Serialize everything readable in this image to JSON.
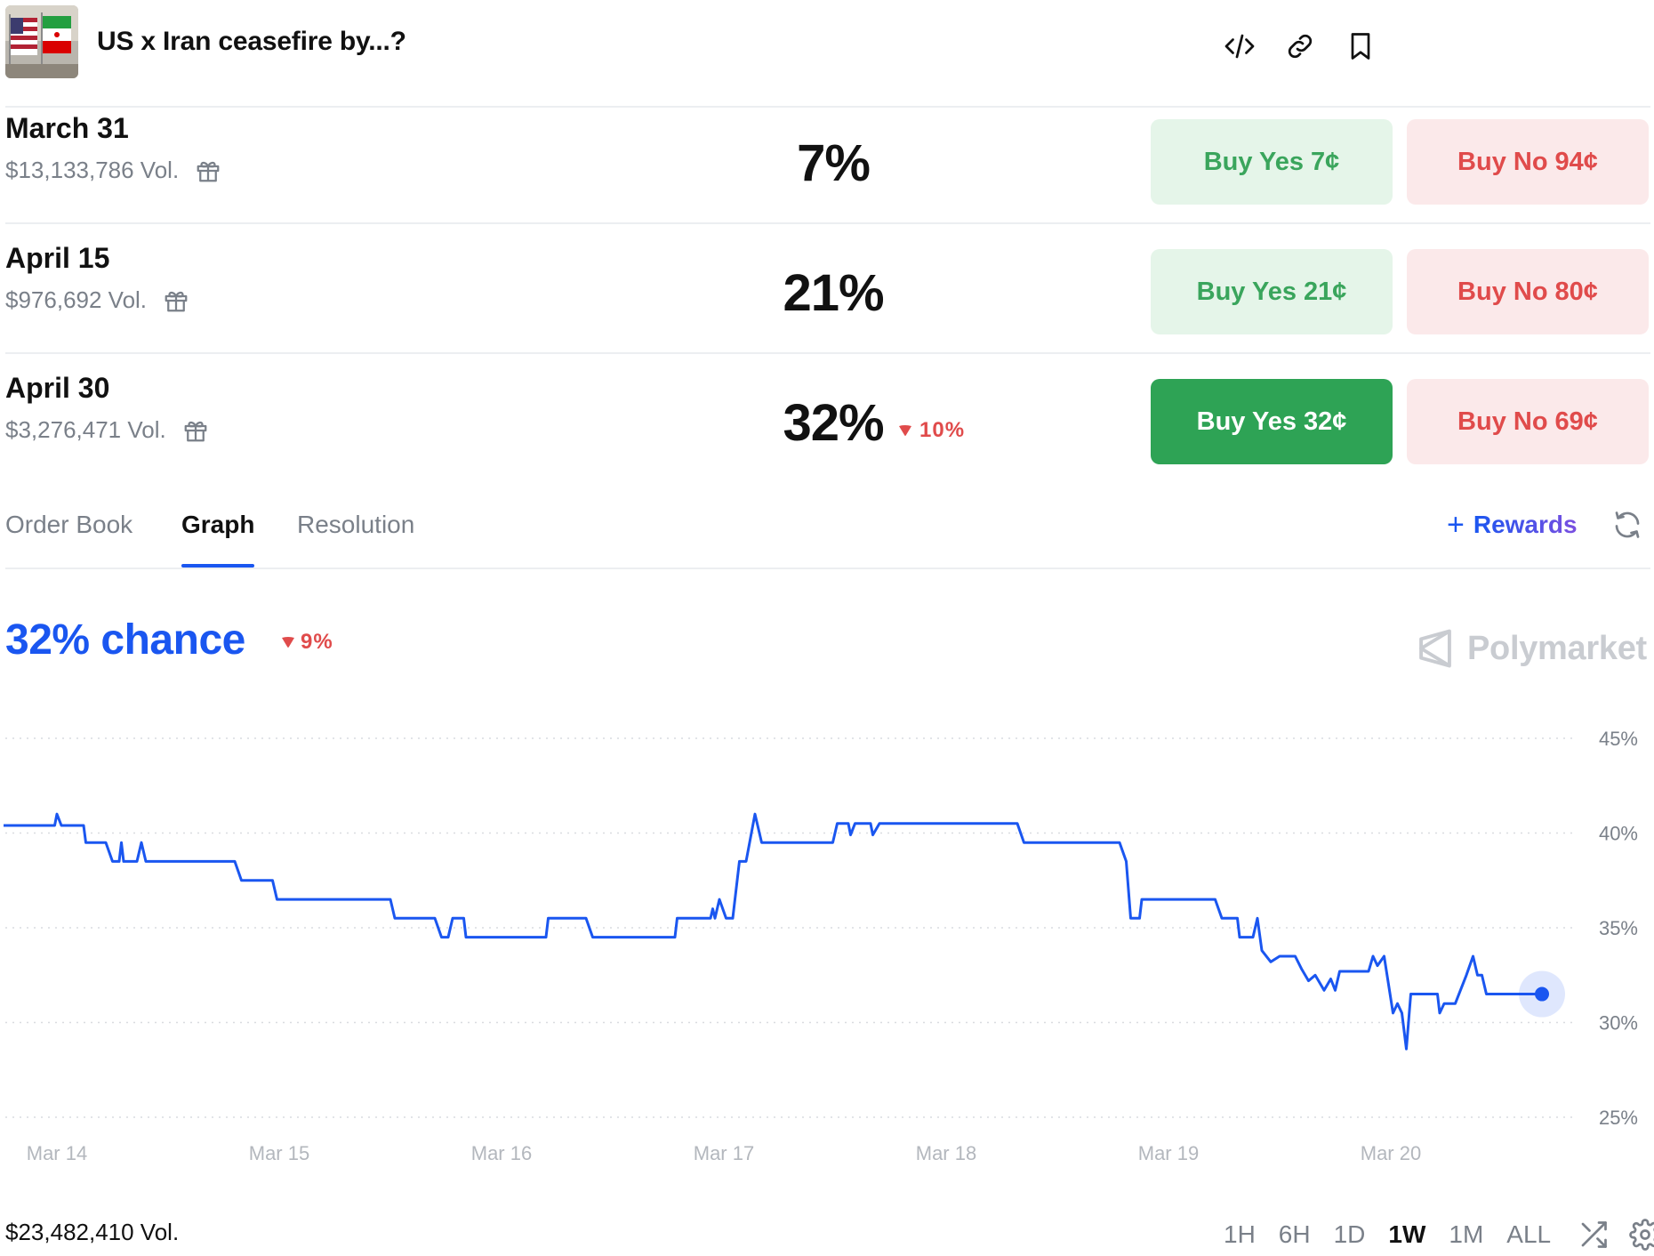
{
  "header": {
    "title": "US x Iran ceasefire by...?",
    "icons": [
      "code-embed-icon",
      "link-icon",
      "bookmark-icon"
    ]
  },
  "outcomes": [
    {
      "date": "March 31",
      "volume": "$13,133,786 Vol.",
      "percent": "7%",
      "change": "",
      "buy_yes_label": "Buy Yes",
      "buy_yes_price": "7¢",
      "buy_no_label": "Buy No",
      "buy_no_price": "94¢",
      "selected": false
    },
    {
      "date": "April 15",
      "volume": "$976,692 Vol.",
      "percent": "21%",
      "change": "",
      "buy_yes_label": "Buy Yes",
      "buy_yes_price": "21¢",
      "buy_no_label": "Buy No",
      "buy_no_price": "80¢",
      "selected": false
    },
    {
      "date": "April 30",
      "volume": "$3,276,471 Vol.",
      "percent": "32%",
      "change": "10%",
      "buy_yes_label": "Buy Yes",
      "buy_yes_price": "32¢",
      "buy_no_label": "Buy No",
      "buy_no_price": "69¢",
      "selected": true
    }
  ],
  "tabs": {
    "items": [
      "Order Book",
      "Graph",
      "Resolution"
    ],
    "active": "Graph",
    "rewards_label": "Rewards"
  },
  "chance": {
    "label": "32% chance",
    "change": "9%"
  },
  "brand": {
    "name": "Polymarket"
  },
  "colors": {
    "accent": "#1a56f0",
    "yes": "#2ea355",
    "yes_light": "#e5f5e9",
    "no": "#e04b4b",
    "no_light": "#fbe9ea"
  },
  "chart_data": {
    "type": "line",
    "ylim": [
      25,
      45
    ],
    "yticks": [
      45,
      40,
      35,
      30,
      25
    ],
    "ytick_labels": [
      "45%",
      "40%",
      "35%",
      "30%",
      "25%"
    ],
    "xticks": [
      0,
      1,
      2,
      3,
      4,
      5,
      6
    ],
    "xtick_labels": [
      "Mar 14",
      "Mar 15",
      "Mar 16",
      "Mar 17",
      "Mar 18",
      "Mar 19",
      "Mar 20"
    ],
    "grid": true,
    "series": [
      {
        "values": [
          [
            -0.24,
            40.4
          ],
          [
            -0.01,
            40.4
          ],
          [
            0.0,
            41.0
          ],
          [
            0.02,
            40.4
          ],
          [
            0.12,
            40.4
          ],
          [
            0.13,
            39.5
          ],
          [
            0.22,
            39.5
          ],
          [
            0.25,
            38.5
          ],
          [
            0.28,
            38.5
          ],
          [
            0.29,
            39.5
          ],
          [
            0.3,
            38.5
          ],
          [
            0.36,
            38.5
          ],
          [
            0.38,
            39.5
          ],
          [
            0.4,
            38.5
          ],
          [
            0.8,
            38.5
          ],
          [
            0.83,
            37.5
          ],
          [
            0.97,
            37.5
          ],
          [
            0.99,
            36.5
          ],
          [
            1.5,
            36.5
          ],
          [
            1.52,
            35.5
          ],
          [
            1.7,
            35.5
          ],
          [
            1.73,
            34.5
          ],
          [
            1.76,
            34.5
          ],
          [
            1.78,
            35.5
          ],
          [
            1.83,
            35.5
          ],
          [
            1.84,
            34.5
          ],
          [
            2.2,
            34.5
          ],
          [
            2.21,
            35.5
          ],
          [
            2.38,
            35.5
          ],
          [
            2.41,
            34.5
          ],
          [
            2.78,
            34.5
          ],
          [
            2.79,
            35.5
          ],
          [
            2.94,
            35.5
          ],
          [
            2.95,
            36.0
          ],
          [
            2.96,
            35.5
          ],
          [
            2.98,
            36.5
          ],
          [
            3.01,
            35.5
          ],
          [
            3.04,
            35.5
          ],
          [
            3.07,
            38.5
          ],
          [
            3.1,
            38.5
          ],
          [
            3.14,
            41.0
          ],
          [
            3.17,
            39.5
          ],
          [
            3.49,
            39.5
          ],
          [
            3.51,
            40.5
          ],
          [
            3.56,
            40.5
          ],
          [
            3.57,
            39.9
          ],
          [
            3.59,
            40.5
          ],
          [
            3.66,
            40.5
          ],
          [
            3.67,
            39.9
          ],
          [
            3.7,
            40.5
          ],
          [
            4.32,
            40.5
          ],
          [
            4.35,
            39.5
          ],
          [
            4.78,
            39.5
          ],
          [
            4.81,
            38.5
          ],
          [
            4.83,
            35.5
          ],
          [
            4.87,
            35.5
          ],
          [
            4.88,
            36.5
          ],
          [
            5.21,
            36.5
          ],
          [
            5.24,
            35.5
          ],
          [
            5.31,
            35.5
          ],
          [
            5.32,
            34.5
          ],
          [
            5.38,
            34.5
          ],
          [
            5.4,
            35.5
          ],
          [
            5.42,
            33.8
          ],
          [
            5.46,
            33.2
          ],
          [
            5.5,
            33.5
          ],
          [
            5.57,
            33.5
          ],
          [
            5.6,
            32.8
          ],
          [
            5.63,
            32.2
          ],
          [
            5.66,
            32.5
          ],
          [
            5.7,
            31.7
          ],
          [
            5.73,
            32.3
          ],
          [
            5.75,
            31.7
          ],
          [
            5.77,
            32.7
          ],
          [
            5.9,
            32.7
          ],
          [
            5.92,
            33.5
          ],
          [
            5.94,
            33.0
          ],
          [
            5.97,
            33.5
          ],
          [
            5.99,
            32.0
          ],
          [
            6.01,
            30.5
          ],
          [
            6.03,
            31.0
          ],
          [
            6.05,
            30.5
          ],
          [
            6.07,
            28.6
          ],
          [
            6.09,
            31.5
          ],
          [
            6.21,
            31.5
          ],
          [
            6.22,
            30.5
          ],
          [
            6.24,
            31.0
          ],
          [
            6.29,
            31.0
          ],
          [
            6.34,
            32.5
          ],
          [
            6.37,
            33.5
          ],
          [
            6.39,
            32.5
          ],
          [
            6.41,
            32.5
          ],
          [
            6.43,
            31.5
          ],
          [
            6.68,
            31.5
          ]
        ],
        "current_value": 31.5
      }
    ]
  },
  "footer": {
    "total_volume": "$23,482,410 Vol.",
    "ranges": [
      "1H",
      "6H",
      "1D",
      "1W",
      "1M",
      "ALL"
    ],
    "active_range": "1W"
  }
}
